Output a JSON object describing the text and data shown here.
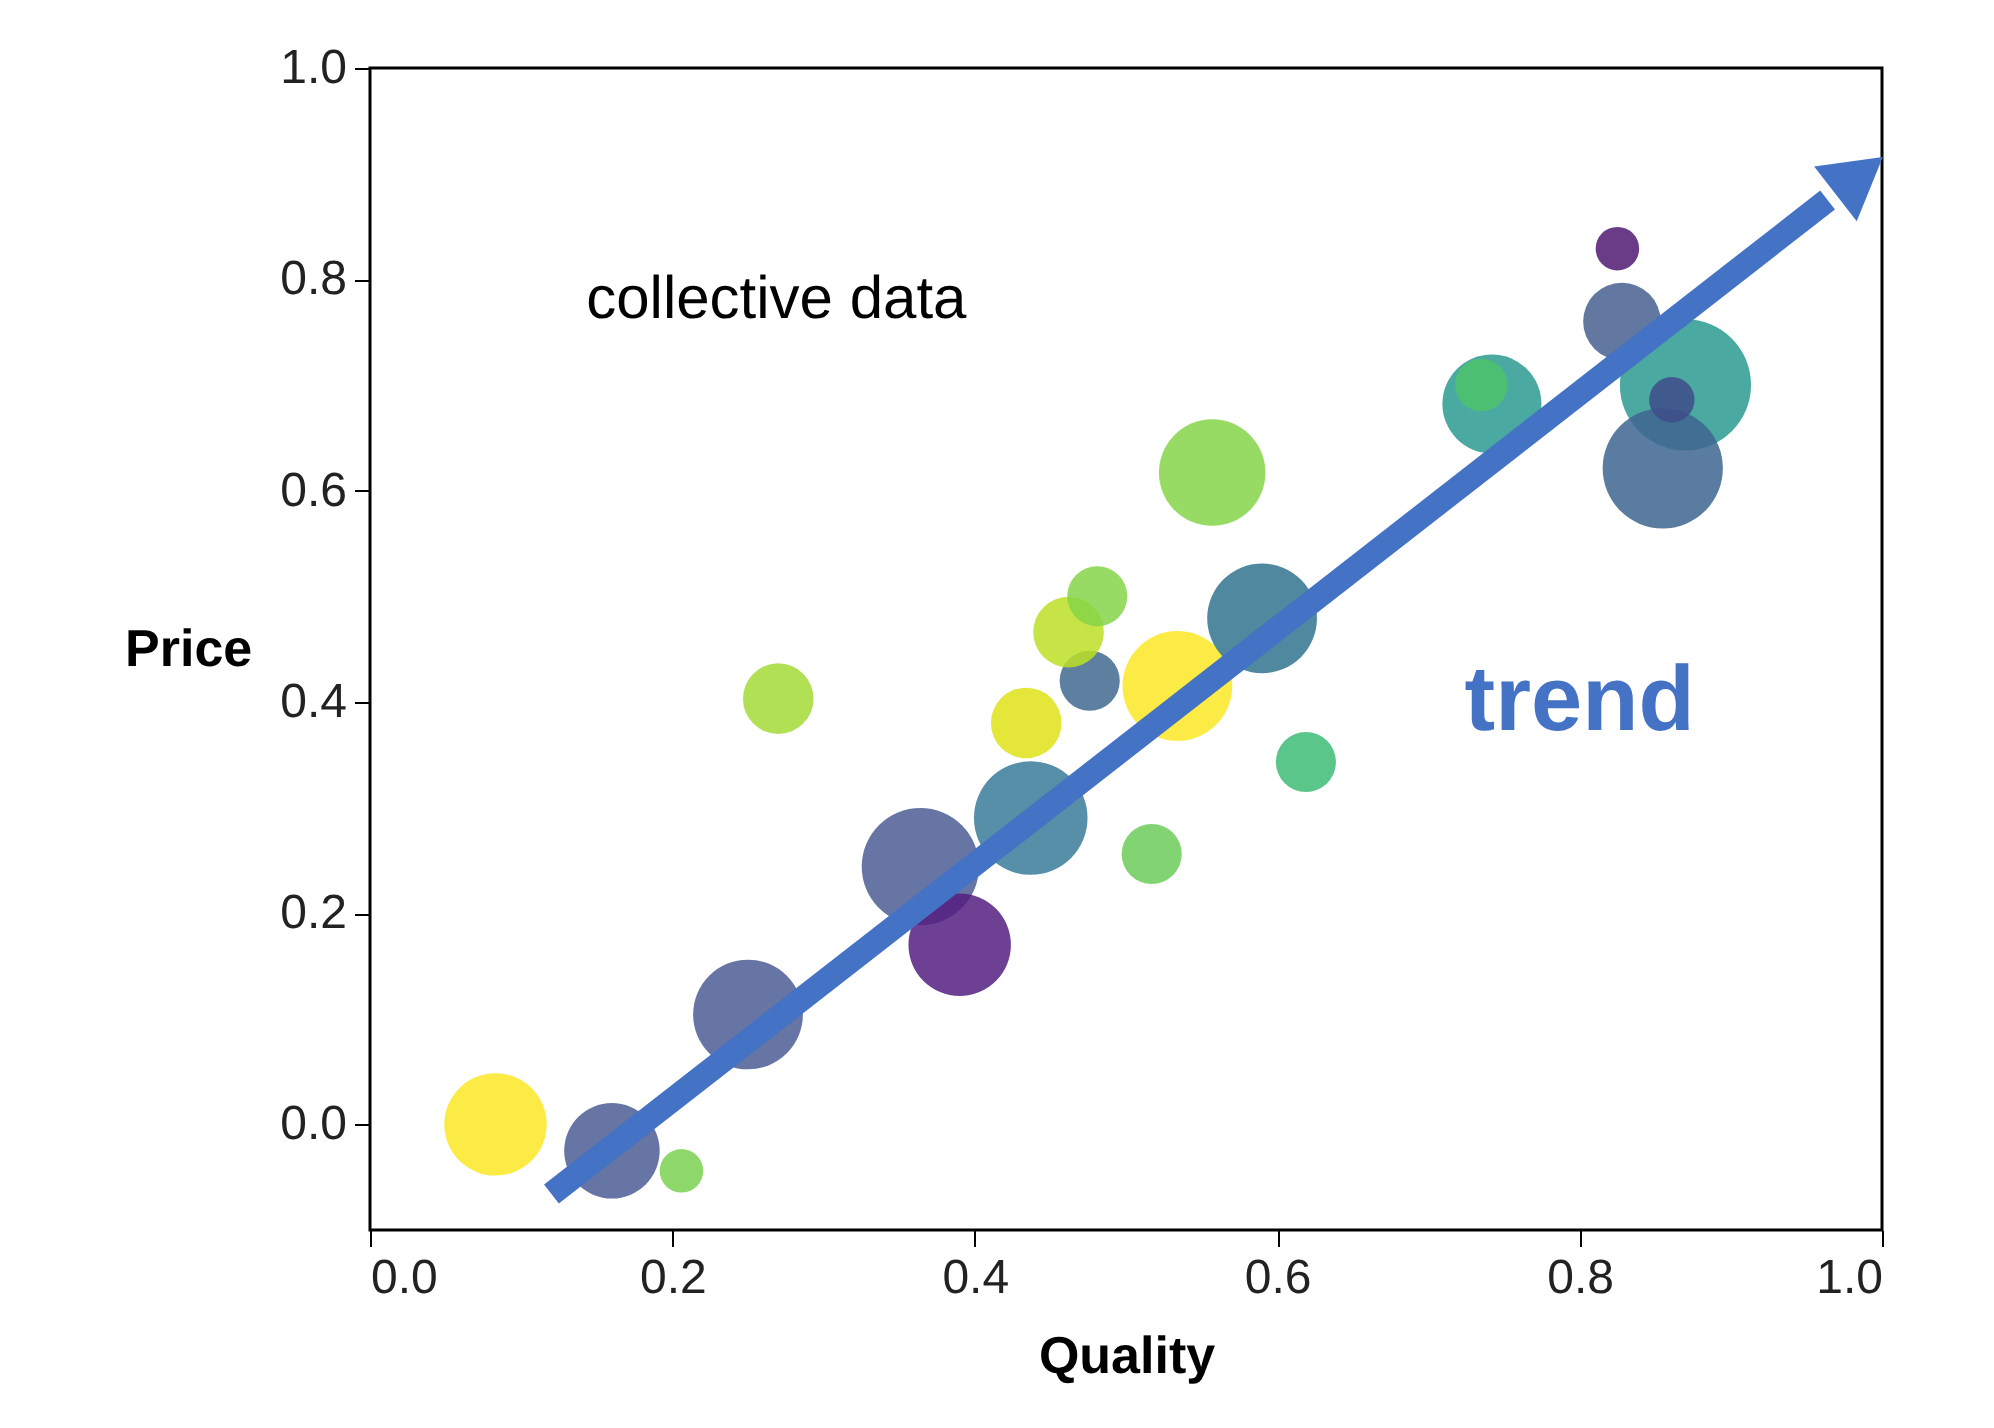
{
  "chart_data": {
    "type": "bubble",
    "xlabel": "Quality",
    "ylabel": "Price",
    "xlim": [
      0,
      1
    ],
    "ylim": [
      -0.1,
      1
    ],
    "xticks": [
      {
        "value": 0,
        "label": "0.0"
      },
      {
        "value": 0.2,
        "label": "0.2"
      },
      {
        "value": 0.4,
        "label": "0.4"
      },
      {
        "value": 0.6,
        "label": "0.6"
      },
      {
        "value": 0.8,
        "label": "0.8"
      },
      {
        "value": 1,
        "label": "1.0"
      }
    ],
    "yticks": [
      {
        "value": 0,
        "label": "0.0"
      },
      {
        "value": 0.2,
        "label": "0.2"
      },
      {
        "value": 0.4,
        "label": "0.4"
      },
      {
        "value": 0.6,
        "label": "0.6"
      },
      {
        "value": 0.8,
        "label": "0.8"
      },
      {
        "value": 1,
        "label": "1.0"
      }
    ],
    "annotations": [
      "collective data"
    ],
    "series": [
      {
        "x": [
          0.083,
          0.16,
          0.206,
          0.25,
          0.27,
          0.364,
          0.39,
          0.437,
          0.517,
          0.619,
          0.434,
          0.476,
          0.462,
          0.481,
          0.534,
          0.59,
          0.557,
          0.742,
          0.735,
          0.825,
          0.828,
          0.87,
          0.855,
          0.861
        ],
        "values": [
          0.0,
          -0.025,
          -0.044,
          0.104,
          0.403,
          0.244,
          0.17,
          0.29,
          0.256,
          0.343,
          0.38,
          0.42,
          0.466,
          0.5,
          0.415,
          0.479,
          0.617,
          0.682,
          0.7,
          0.829,
          0.76,
          0.7,
          0.621,
          0.686
        ],
        "sizes": [
          0.61,
          0.53,
          0.11,
          0.7,
          0.29,
          0.8,
          0.61,
          0.75,
          0.21,
          0.21,
          0.29,
          0.21,
          0.29,
          0.21,
          0.7,
          0.7,
          0.66,
          0.57,
          0.16,
          0.11,
          0.35,
          1,
          0.84,
          0.12
        ],
        "colors": [
          "#fde725",
          "#4c5d94",
          "#7ad151",
          "#4c5d94",
          "#a5db36",
          "#4c5d94",
          "#551f80",
          "#3b7b99",
          "#6ccd5a",
          "#3dbc74",
          "#dfe318",
          "#41688f",
          "#bddf26",
          "#86d549",
          "#fde725",
          "#31738f",
          "#86d549",
          "#2a9a8f",
          "#4ec36b",
          "#501a73",
          "#46608f",
          "#2a9a8f",
          "#3e6591",
          "#3e4c8a"
        ]
      },
      {
        "type": "line",
        "name": "trend",
        "color": "#4472c4",
        "x": [
          0.12,
          0.964
        ],
        "values": [
          -0.066,
          0.875
        ]
      }
    ]
  }
}
